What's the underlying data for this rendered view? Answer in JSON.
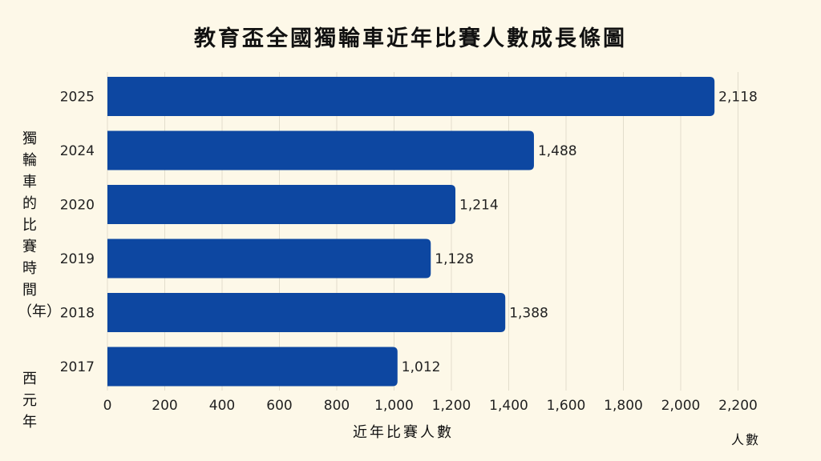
{
  "chart_data": {
    "type": "bar",
    "orientation": "horizontal",
    "title": "教育盃全國獨輪車近年比賽人數成長條圖",
    "ylabel": "獨輪車的比賽時間（年）",
    "ylabel_sub": "西元年",
    "xlabel": "近年比賽人數",
    "unit": "人數",
    "categories": [
      "2025",
      "2024",
      "2020",
      "2019",
      "2018",
      "2017"
    ],
    "values": [
      2118,
      1488,
      1214,
      1128,
      1388,
      1012
    ],
    "value_labels": [
      "2,118",
      "1,488",
      "1,214",
      "1,128",
      "1,388",
      "1,012"
    ],
    "xlim": [
      0,
      2200
    ],
    "xticks": [
      0,
      200,
      400,
      600,
      800,
      1000,
      1200,
      1400,
      1600,
      1800,
      2000,
      2200
    ],
    "xtick_labels": [
      "0",
      "200",
      "400",
      "600",
      "800",
      "1,000",
      "1,200",
      "1,400",
      "1,600",
      "1,800",
      "2,000",
      "2,200"
    ],
    "grid": true,
    "bar_color": "#0d47a1",
    "background_color": "#fdf8e8"
  }
}
